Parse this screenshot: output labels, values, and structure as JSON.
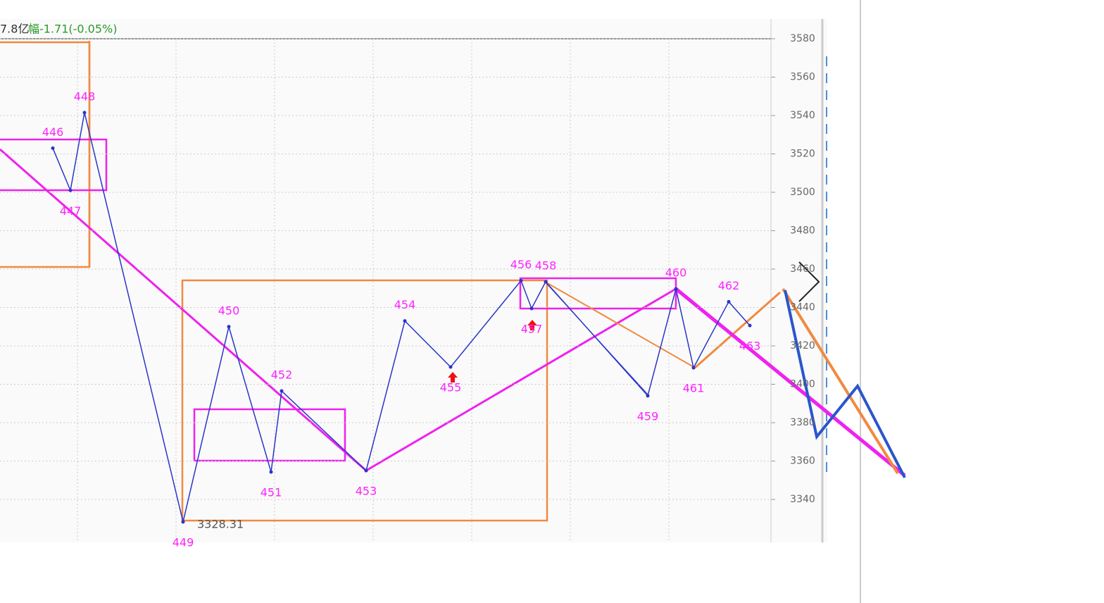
{
  "chart_data": {
    "type": "line",
    "header_text": "7.8亿",
    "change_label": "幅-1.71(-0.05%)",
    "point_labels": [
      "446",
      "447",
      "448",
      "449",
      "450",
      "451",
      "452",
      "453",
      "454",
      "455",
      "456",
      "457",
      "458",
      "459",
      "460",
      "461",
      "462",
      "463"
    ],
    "x": [
      15,
      20,
      24,
      52,
      65,
      77,
      80,
      104,
      115,
      128,
      148,
      151,
      155,
      184,
      192,
      197,
      207,
      213
    ],
    "values": [
      3523,
      3501,
      3541.5,
      3328.31,
      3430,
      3354.3,
      3396.5,
      3355,
      3433,
      3409,
      3454,
      3439.5,
      3453.4,
      3394,
      3449.7,
      3408.6,
      3443,
      3430.6
    ],
    "color": "#2a35c8",
    "label_color": "#ff22ff",
    "xlim": [
      0,
      219
    ],
    "ylim": [
      3320,
      3580
    ],
    "yticks": [
      3340,
      3360,
      3380,
      3400,
      3420,
      3440,
      3460,
      3480,
      3500,
      3520,
      3540,
      3560,
      3580
    ],
    "grid": true
  }
}
